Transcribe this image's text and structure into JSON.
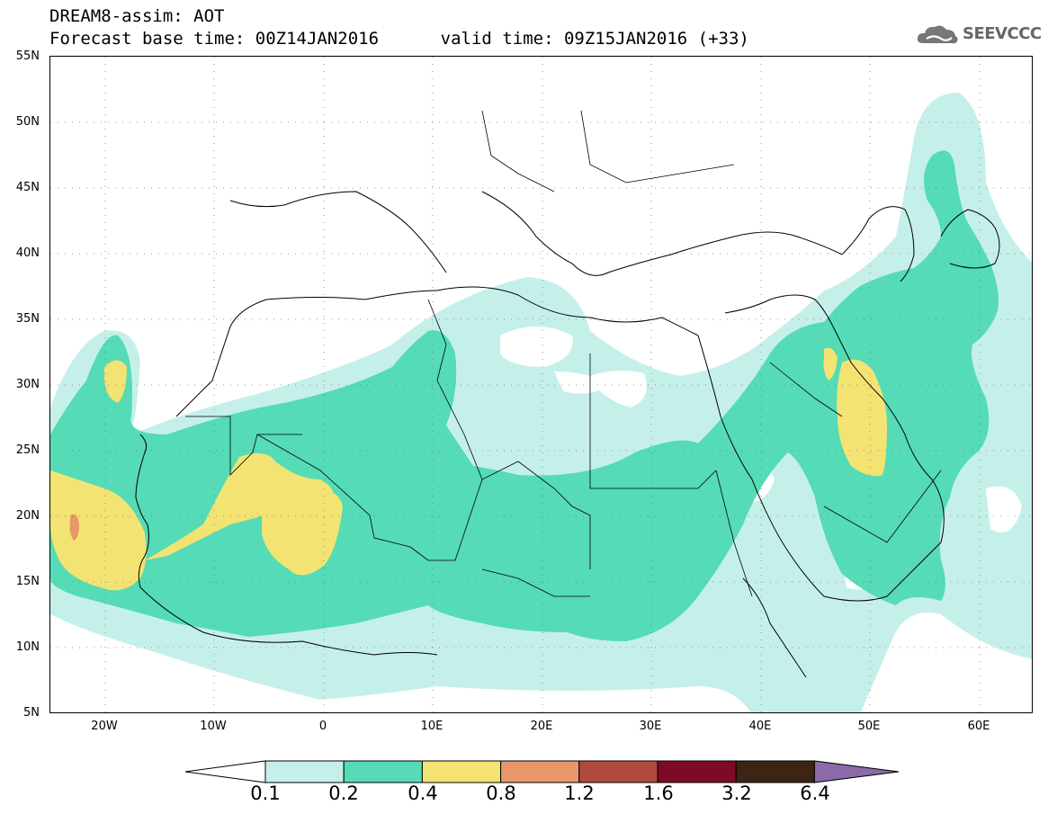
{
  "header": {
    "line1": "DREAM8-assim: AOT",
    "line2": "Forecast base time: 00Z14JAN2016      valid time: 09Z15JAN2016 (+33)"
  },
  "logo": {
    "text": "SEEVCCC",
    "icon": "cloud-icon"
  },
  "axes": {
    "lat_labels": [
      "55N",
      "50N",
      "45N",
      "40N",
      "35N",
      "30N",
      "25N",
      "20N",
      "15N",
      "10N",
      "5N"
    ],
    "lon_labels": [
      "20W",
      "10W",
      "0",
      "10E",
      "20E",
      "30E",
      "40E",
      "50E",
      "60E"
    ],
    "lat_range": [
      5,
      55
    ],
    "lon_range": [
      -25,
      65
    ],
    "grid": "dotted"
  },
  "colorbar": {
    "labels": [
      "0.1",
      "0.2",
      "0.4",
      "0.8",
      "1.2",
      "1.6",
      "3.2",
      "6.4"
    ],
    "colors": [
      "#c5f0ea",
      "#55dbb6",
      "#f3e373",
      "#e8966a",
      "#b04a3c",
      "#7d0b28",
      "#3d2516",
      "#8a6aa8"
    ],
    "under_color": "#ffffff"
  },
  "field": {
    "variable": "AOT",
    "model": "DREAM8-assim"
  }
}
